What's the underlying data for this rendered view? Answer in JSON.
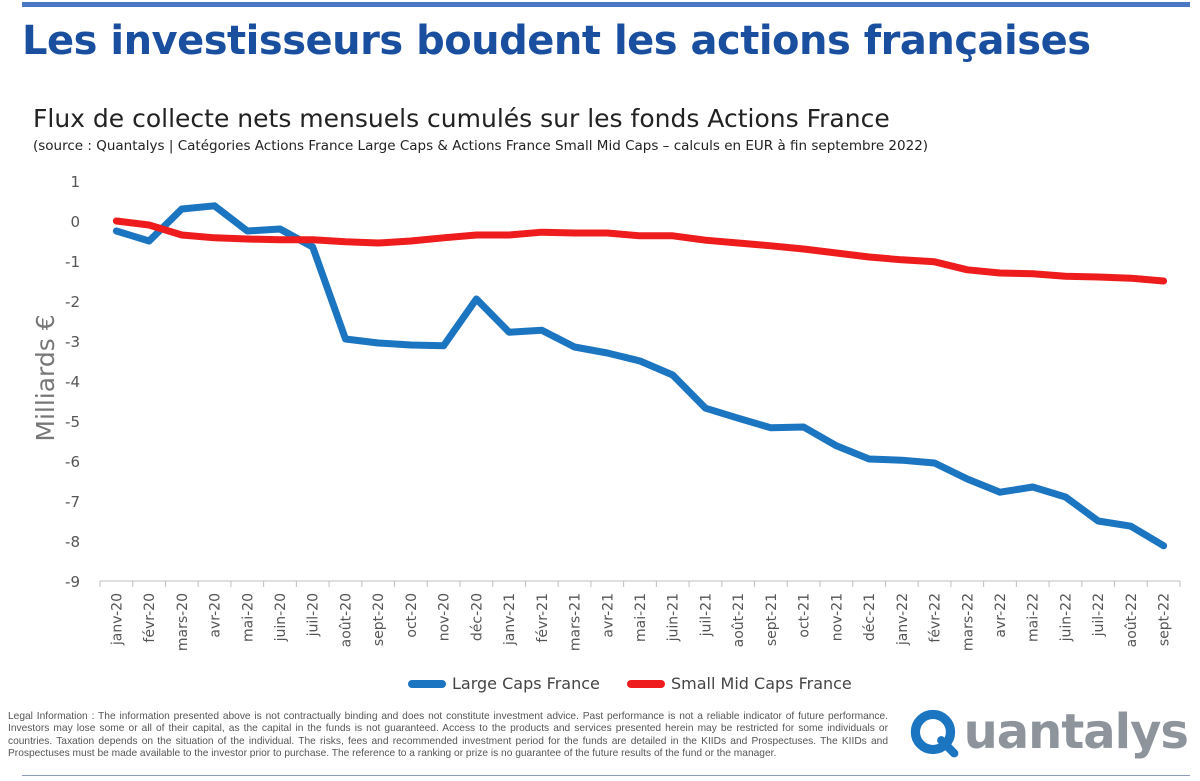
{
  "header": {
    "headline": "Les investisseurs boudent les actions françaises"
  },
  "chart_data": {
    "type": "line",
    "title": "Flux de collecte nets mensuels cumulés sur les fonds Actions France",
    "subtitle": "(source : Quantalys | Catégories Actions France Large Caps & Actions France Small Mid Caps – calculs en EUR à fin septembre 2022)",
    "xlabel": "",
    "ylabel": "Milliards €",
    "ylim": [
      -9,
      1
    ],
    "yticks": [
      1,
      0,
      -1,
      -2,
      -3,
      -4,
      -5,
      -6,
      -7,
      -8,
      -9
    ],
    "grid": false,
    "legend_position": "bottom",
    "categories": [
      "janv-20",
      "févr-20",
      "mars-20",
      "avr-20",
      "mai-20",
      "juin-20",
      "juil-20",
      "août-20",
      "sept-20",
      "oct-20",
      "nov-20",
      "déc-20",
      "janv-21",
      "févr-21",
      "mars-21",
      "avr-21",
      "mai-21",
      "juin-21",
      "juil-21",
      "août-21",
      "sept-21",
      "oct-21",
      "nov-21",
      "déc-21",
      "janv-22",
      "févr-22",
      "mars-22",
      "avr-22",
      "mai-22",
      "juin-22",
      "juil-22",
      "août-22",
      "sept-22"
    ],
    "series": [
      {
        "name": "Large Caps France",
        "color": "#1b75c0",
        "values": [
          -0.25,
          -0.5,
          0.3,
          0.38,
          -0.25,
          -0.2,
          -0.65,
          -2.95,
          -3.05,
          -3.1,
          -3.12,
          -1.95,
          -2.78,
          -2.73,
          -3.15,
          -3.3,
          -3.5,
          -3.85,
          -4.68,
          -4.93,
          -5.17,
          -5.15,
          -5.62,
          -5.95,
          -5.98,
          -6.05,
          -6.45,
          -6.78,
          -6.65,
          -6.9,
          -7.5,
          -7.63,
          -8.12
        ]
      },
      {
        "name": "Small Mid Caps France",
        "color": "#ee1c1c",
        "values": [
          0.0,
          -0.1,
          -0.35,
          -0.42,
          -0.45,
          -0.47,
          -0.47,
          -0.52,
          -0.55,
          -0.5,
          -0.42,
          -0.35,
          -0.35,
          -0.28,
          -0.3,
          -0.3,
          -0.37,
          -0.37,
          -0.48,
          -0.55,
          -0.62,
          -0.7,
          -0.8,
          -0.9,
          -0.97,
          -1.02,
          -1.22,
          -1.3,
          -1.32,
          -1.38,
          -1.4,
          -1.43,
          -1.5
        ]
      }
    ]
  },
  "footer": {
    "legal": "Legal Information : The information presented above is not contractually binding and does not constitute investment advice. Past performance is not a reliable indicator of future performance. Investors may lose some or all of their capital, as the capital in the funds is not guaranteed.  Access to the products and services presented herein may be restricted for some individuals or countries. Taxation depends on the situation of the individual. The risks, fees and recommended investment period for the funds are detailed in the KIIDs and Prospectuses. The KIIDs and Prospectuses must be made available to the investor prior to purchase. The reference to a ranking or prize is no guarantee of the future results of the fund or the manager.",
    "logo_text": "uantalys",
    "logo_color": "#1b75c0",
    "logo_text_color": "#8e949c"
  }
}
